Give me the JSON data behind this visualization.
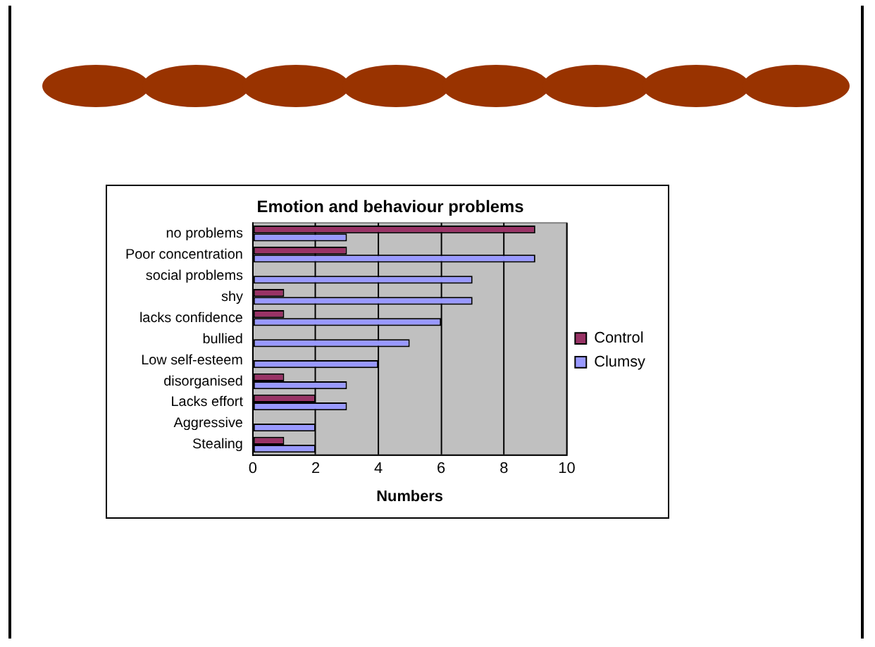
{
  "chart_data": {
    "type": "bar",
    "orientation": "horizontal",
    "title": "Emotion and behaviour problems",
    "xlabel": "Numbers",
    "categories": [
      "no problems",
      "Poor concentration",
      "social problems",
      "shy",
      "lacks confidence",
      "bullied",
      "Low self-esteem",
      "disorganised",
      "Lacks effort",
      "Aggressive",
      "Stealing"
    ],
    "series": [
      {
        "name": "Control",
        "color": "#993366",
        "values": [
          9,
          3,
          0,
          1,
          1,
          0,
          0,
          1,
          2,
          0,
          1
        ]
      },
      {
        "name": "Clumsy",
        "color": "#9999ff",
        "values": [
          3,
          9,
          7,
          7,
          6,
          5,
          4,
          3,
          3,
          2,
          2
        ]
      }
    ],
    "xlim": [
      0,
      10
    ],
    "xticks": [
      0,
      2,
      4,
      6,
      8,
      10
    ],
    "grid": "x",
    "legend": "right"
  }
}
